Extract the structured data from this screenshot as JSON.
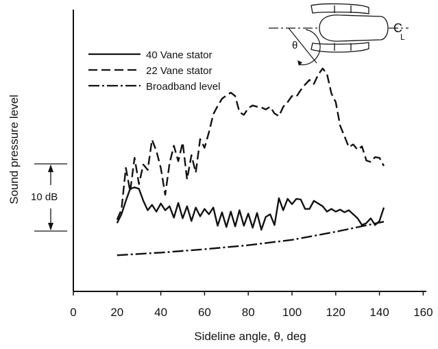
{
  "chart_data": {
    "type": "line",
    "title": "",
    "xlabel": "Sideline angle, θ, deg",
    "ylabel": "Sound pressure level",
    "xlim": [
      0,
      160
    ],
    "x_ticks": [
      0,
      20,
      40,
      60,
      80,
      100,
      120,
      140,
      160
    ],
    "y_ticks_shown": false,
    "y_units": "dB relative",
    "grid": false,
    "legend_placement": "top-left",
    "scale_bar": {
      "label": "10 dB",
      "value_db": 10
    },
    "inset_labels": {
      "angle": "θ",
      "centerline": "C",
      "centerline_sub": "L"
    },
    "series": [
      {
        "name": "40 Vane stator",
        "style": "solid",
        "color": "#111111",
        "points": [
          [
            20,
            1.3
          ],
          [
            22,
            2.6
          ],
          [
            24,
            4.6
          ],
          [
            26,
            6.4
          ],
          [
            28,
            6.6
          ],
          [
            30,
            6.4
          ],
          [
            32,
            4.6
          ],
          [
            34,
            3.2
          ],
          [
            36,
            4.0
          ],
          [
            38,
            3.0
          ],
          [
            40,
            4.2
          ],
          [
            42,
            3.2
          ],
          [
            44,
            3.8
          ],
          [
            46,
            2.1
          ],
          [
            48,
            4.3
          ],
          [
            50,
            2.0
          ],
          [
            52,
            3.8
          ],
          [
            54,
            1.6
          ],
          [
            56,
            3.6
          ],
          [
            58,
            2.3
          ],
          [
            60,
            3.4
          ],
          [
            62,
            2.6
          ],
          [
            64,
            3.6
          ],
          [
            66,
            0.9
          ],
          [
            68,
            2.9
          ],
          [
            70,
            0.7
          ],
          [
            72,
            3.0
          ],
          [
            74,
            0.8
          ],
          [
            76,
            3.2
          ],
          [
            78,
            0.9
          ],
          [
            80,
            2.7
          ],
          [
            82,
            0.6
          ],
          [
            84,
            2.8
          ],
          [
            86,
            0.3
          ],
          [
            88,
            2.2
          ],
          [
            90,
            2.6
          ],
          [
            92,
            1.0
          ],
          [
            94,
            5.0
          ],
          [
            96,
            3.2
          ],
          [
            98,
            4.9
          ],
          [
            100,
            4.1
          ],
          [
            102,
            4.9
          ],
          [
            104,
            4.8
          ],
          [
            106,
            3.4
          ],
          [
            108,
            3.4
          ],
          [
            110,
            4.6
          ],
          [
            112,
            4.2
          ],
          [
            114,
            3.8
          ],
          [
            116,
            3.0
          ],
          [
            118,
            3.4
          ],
          [
            120,
            3.0
          ],
          [
            122,
            3.3
          ],
          [
            124,
            2.9
          ],
          [
            126,
            3.2
          ],
          [
            128,
            2.6
          ],
          [
            130,
            2.0
          ],
          [
            132,
            1.0
          ],
          [
            134,
            1.3
          ],
          [
            136,
            2.0
          ],
          [
            138,
            1.0
          ],
          [
            140,
            1.6
          ],
          [
            142,
            3.6
          ]
        ]
      },
      {
        "name": "22 Vane stator",
        "style": "dashed",
        "color": "#111111",
        "points": [
          [
            20,
            1.8
          ],
          [
            22,
            3.3
          ],
          [
            24,
            9.5
          ],
          [
            26,
            6.0
          ],
          [
            28,
            11.0
          ],
          [
            30,
            7.1
          ],
          [
            32,
            10.0
          ],
          [
            34,
            9.2
          ],
          [
            36,
            13.7
          ],
          [
            38,
            12.0
          ],
          [
            40,
            9.5
          ],
          [
            42,
            5.5
          ],
          [
            44,
            10.2
          ],
          [
            46,
            12.8
          ],
          [
            48,
            10.5
          ],
          [
            50,
            13.3
          ],
          [
            52,
            7.8
          ],
          [
            54,
            11.4
          ],
          [
            56,
            8.8
          ],
          [
            58,
            13.8
          ],
          [
            60,
            12.5
          ],
          [
            62,
            14.8
          ],
          [
            64,
            17.5
          ],
          [
            66,
            18.7
          ],
          [
            68,
            19.8
          ],
          [
            70,
            20.3
          ],
          [
            72,
            20.7
          ],
          [
            74,
            20.2
          ],
          [
            76,
            17.8
          ],
          [
            78,
            17.4
          ],
          [
            80,
            18.4
          ],
          [
            82,
            18.8
          ],
          [
            84,
            18.6
          ],
          [
            86,
            18.5
          ],
          [
            88,
            18.2
          ],
          [
            90,
            18.6
          ],
          [
            92,
            17.6
          ],
          [
            94,
            17.2
          ],
          [
            96,
            18.6
          ],
          [
            98,
            19.3
          ],
          [
            100,
            20.2
          ],
          [
            102,
            20.1
          ],
          [
            104,
            21.1
          ],
          [
            106,
            21.9
          ],
          [
            108,
            22.6
          ],
          [
            110,
            22.0
          ],
          [
            112,
            23.4
          ],
          [
            114,
            24.3
          ],
          [
            116,
            23.5
          ],
          [
            118,
            20.6
          ],
          [
            120,
            19.3
          ],
          [
            122,
            15.8
          ],
          [
            124,
            14.2
          ],
          [
            126,
            12.6
          ],
          [
            128,
            13.0
          ],
          [
            130,
            12.2
          ],
          [
            132,
            12.7
          ],
          [
            134,
            10.6
          ],
          [
            136,
            10.4
          ],
          [
            138,
            11.1
          ],
          [
            140,
            11.0
          ],
          [
            142,
            9.8
          ]
        ]
      },
      {
        "name": "Broadband level",
        "style": "dash-dot",
        "color": "#111111",
        "points": [
          [
            20,
            -3.5
          ],
          [
            40,
            -3.1
          ],
          [
            60,
            -2.6
          ],
          [
            80,
            -2.0
          ],
          [
            100,
            -1.2
          ],
          [
            120,
            0.0
          ],
          [
            142,
            1.5
          ]
        ]
      }
    ]
  }
}
